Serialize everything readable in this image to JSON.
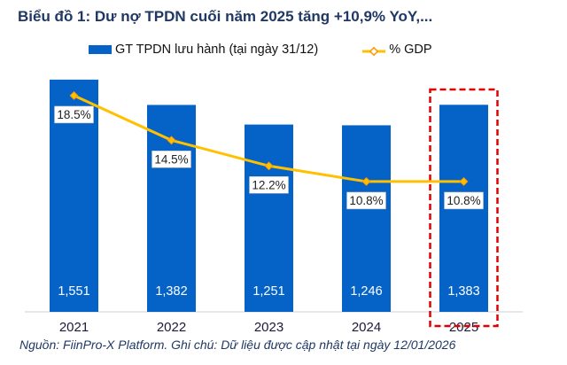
{
  "chart_data": {
    "type": "bar+line",
    "title": "Biểu đồ 1: Dư nợ TPDN cuối năm 2025 tăng +10,9% YoY,...",
    "categories": [
      "2021",
      "2022",
      "2023",
      "2024",
      "2025"
    ],
    "series": [
      {
        "name": "GT TPDN lưu hành (tại ngày 31/12)",
        "type": "bar",
        "values": [
          1551,
          1382,
          1251,
          1246,
          1383
        ],
        "labels": [
          "1,551",
          "1,382",
          "1,251",
          "1,246",
          "1,383"
        ],
        "color": "#0563c8"
      },
      {
        "name": "% GDP",
        "type": "line",
        "values": [
          18.5,
          14.5,
          12.2,
          10.8,
          10.8
        ],
        "labels": [
          "18.5%",
          "14.5%",
          "12.2%",
          "10.8%",
          "10.8%"
        ],
        "color": "#ffc000"
      }
    ],
    "highlight": {
      "category": "2025",
      "color": "#e00000",
      "style": "dashed"
    },
    "legend": "top",
    "grid": false
  },
  "source": "Nguồn: FiinPro-X Platform. Ghi chú: Dữ liệu được cập nhật tại ngày 12/01/2026"
}
